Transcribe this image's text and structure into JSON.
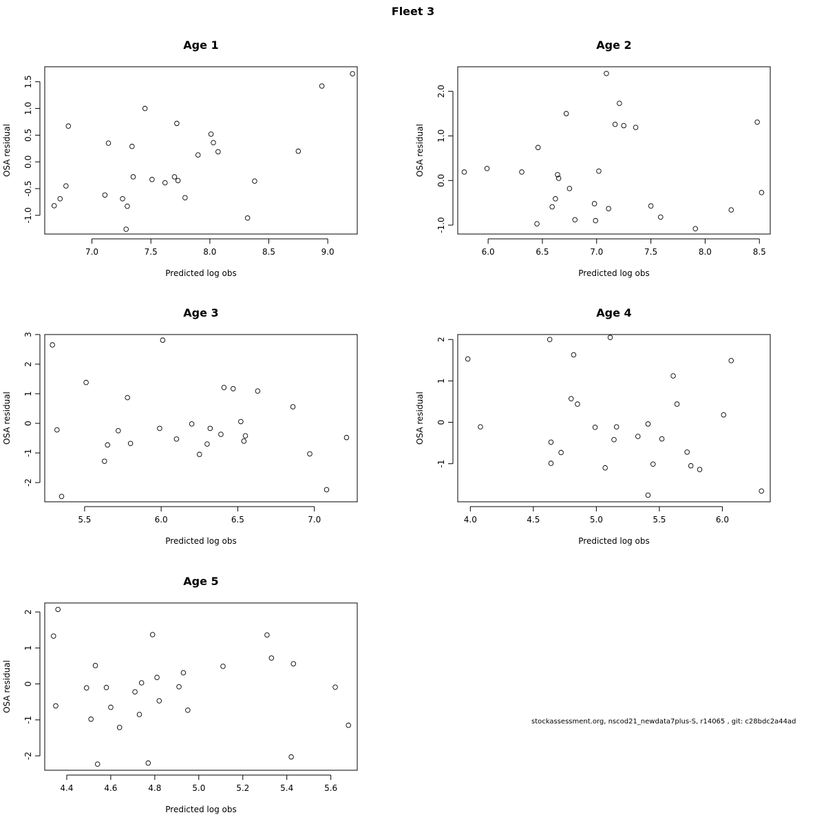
{
  "page": {
    "title": "Fleet 3",
    "footnote": "stockassessment.org, nscod21_newdata7plus-S, r14065 , git: c28bdc2a44ad"
  },
  "colors": {
    "axis": "#000000",
    "point": "#000000",
    "background": "#ffffff"
  },
  "chart_data": [
    {
      "type": "scatter",
      "title": "Age 1",
      "xlabel": "Predicted log obs",
      "ylabel": "OSA residual",
      "xlim": [
        6.6,
        9.25
      ],
      "ylim": [
        -1.35,
        1.78
      ],
      "xticks": [
        "7.0",
        "7.5",
        "8.0",
        "8.5",
        "9.0"
      ],
      "yticks": [
        "-1.0",
        "-0.5",
        "0.0",
        "0.5",
        "1.0",
        "1.5"
      ],
      "points": [
        [
          6.68,
          -0.82
        ],
        [
          6.73,
          -0.69
        ],
        [
          6.78,
          -0.45
        ],
        [
          6.8,
          0.67
        ],
        [
          7.11,
          -0.62
        ],
        [
          7.14,
          0.35
        ],
        [
          7.26,
          -0.69
        ],
        [
          7.3,
          -0.83
        ],
        [
          7.29,
          -1.26
        ],
        [
          7.34,
          0.29
        ],
        [
          7.35,
          -0.28
        ],
        [
          7.45,
          1.0
        ],
        [
          7.51,
          -0.33
        ],
        [
          7.62,
          -0.39
        ],
        [
          7.7,
          -0.28
        ],
        [
          7.72,
          0.72
        ],
        [
          7.73,
          -0.35
        ],
        [
          7.79,
          -0.67
        ],
        [
          7.9,
          0.13
        ],
        [
          8.01,
          0.52
        ],
        [
          8.03,
          0.36
        ],
        [
          8.07,
          0.19
        ],
        [
          8.32,
          -1.05
        ],
        [
          8.38,
          -0.36
        ],
        [
          8.75,
          0.2
        ],
        [
          8.95,
          1.42
        ],
        [
          9.21,
          1.65
        ]
      ]
    },
    {
      "type": "scatter",
      "title": "Age 2",
      "xlabel": "Predicted log obs",
      "ylabel": "OSA residual",
      "xlim": [
        5.72,
        8.6
      ],
      "ylim": [
        -1.2,
        2.55
      ],
      "xticks": [
        "6.0",
        "6.5",
        "7.0",
        "7.5",
        "8.0",
        "8.5"
      ],
      "yticks": [
        "-1.0",
        "0.0",
        "1.0",
        "2.0"
      ],
      "points": [
        [
          5.78,
          0.19
        ],
        [
          5.99,
          0.27
        ],
        [
          6.31,
          0.19
        ],
        [
          6.45,
          -0.97
        ],
        [
          6.46,
          0.74
        ],
        [
          6.59,
          -0.59
        ],
        [
          6.62,
          -0.41
        ],
        [
          6.64,
          0.13
        ],
        [
          6.65,
          0.05
        ],
        [
          6.72,
          1.5
        ],
        [
          6.75,
          -0.18
        ],
        [
          6.8,
          -0.88
        ],
        [
          6.98,
          -0.52
        ],
        [
          6.99,
          -0.9
        ],
        [
          7.02,
          0.21
        ],
        [
          7.09,
          2.4
        ],
        [
          7.11,
          -0.63
        ],
        [
          7.17,
          1.26
        ],
        [
          7.21,
          1.73
        ],
        [
          7.25,
          1.23
        ],
        [
          7.36,
          1.19
        ],
        [
          7.5,
          -0.57
        ],
        [
          7.59,
          -0.82
        ],
        [
          7.91,
          -1.08
        ],
        [
          8.24,
          -0.66
        ],
        [
          8.48,
          1.31
        ],
        [
          8.52,
          -0.27
        ]
      ]
    },
    {
      "type": "scatter",
      "title": "Age 3",
      "xlabel": "Predicted log obs",
      "ylabel": "OSA residual",
      "xlim": [
        5.24,
        7.28
      ],
      "ylim": [
        -2.65,
        3.0
      ],
      "xticks": [
        "5.5",
        "6.0",
        "6.5",
        "7.0"
      ],
      "yticks": [
        "-2",
        "-1",
        "0",
        "1",
        "2",
        "3"
      ],
      "points": [
        [
          5.29,
          2.65
        ],
        [
          5.32,
          -0.22
        ],
        [
          5.35,
          -2.47
        ],
        [
          5.51,
          1.38
        ],
        [
          5.63,
          -1.28
        ],
        [
          5.65,
          -0.73
        ],
        [
          5.72,
          -0.25
        ],
        [
          5.78,
          0.87
        ],
        [
          5.8,
          -0.68
        ],
        [
          5.99,
          -0.17
        ],
        [
          6.01,
          2.81
        ],
        [
          6.1,
          -0.53
        ],
        [
          6.2,
          -0.02
        ],
        [
          6.25,
          -1.05
        ],
        [
          6.3,
          -0.7
        ],
        [
          6.32,
          -0.17
        ],
        [
          6.39,
          -0.37
        ],
        [
          6.41,
          1.21
        ],
        [
          6.47,
          1.17
        ],
        [
          6.52,
          0.06
        ],
        [
          6.54,
          -0.6
        ],
        [
          6.55,
          -0.42
        ],
        [
          6.63,
          1.09
        ],
        [
          6.86,
          0.56
        ],
        [
          6.97,
          -1.03
        ],
        [
          7.08,
          -2.24
        ],
        [
          7.21,
          -0.48
        ]
      ]
    },
    {
      "type": "scatter",
      "title": "Age 4",
      "xlabel": "Predicted log obs",
      "ylabel": "OSA residual",
      "xlim": [
        3.9,
        6.38
      ],
      "ylim": [
        -1.92,
        2.12
      ],
      "xticks": [
        "4.0",
        "4.5",
        "5.0",
        "5.5",
        "6.0"
      ],
      "yticks": [
        "-1",
        "0",
        "1",
        "2"
      ],
      "points": [
        [
          3.98,
          1.53
        ],
        [
          4.08,
          -0.11
        ],
        [
          4.63,
          2.0
        ],
        [
          4.64,
          -0.48
        ],
        [
          4.64,
          -0.99
        ],
        [
          4.72,
          -0.73
        ],
        [
          4.8,
          0.57
        ],
        [
          4.82,
          1.63
        ],
        [
          4.85,
          0.44
        ],
        [
          4.99,
          -0.12
        ],
        [
          5.07,
          -1.1
        ],
        [
          5.11,
          2.05
        ],
        [
          5.14,
          -0.42
        ],
        [
          5.16,
          -0.11
        ],
        [
          5.33,
          -0.34
        ],
        [
          5.41,
          -0.04
        ],
        [
          5.41,
          -1.76
        ],
        [
          5.45,
          -1.01
        ],
        [
          5.52,
          -0.4
        ],
        [
          5.61,
          1.12
        ],
        [
          5.64,
          0.44
        ],
        [
          5.72,
          -0.72
        ],
        [
          5.75,
          -1.05
        ],
        [
          5.82,
          -1.14
        ],
        [
          6.01,
          0.18
        ],
        [
          6.07,
          1.49
        ],
        [
          6.31,
          -1.66
        ]
      ]
    },
    {
      "type": "scatter",
      "title": "Age 5",
      "xlabel": "Predicted log obs",
      "ylabel": "OSA residual",
      "xlim": [
        4.3,
        5.72
      ],
      "ylim": [
        -2.4,
        2.25
      ],
      "xticks": [
        "4.4",
        "4.6",
        "4.8",
        "5.0",
        "5.2",
        "5.4",
        "5.6"
      ],
      "yticks": [
        "-2",
        "-1",
        "0",
        "1",
        "2"
      ],
      "points": [
        [
          4.34,
          1.33
        ],
        [
          4.36,
          2.07
        ],
        [
          4.35,
          -0.61
        ],
        [
          4.49,
          -0.11
        ],
        [
          4.51,
          -0.98
        ],
        [
          4.53,
          0.51
        ],
        [
          4.54,
          -2.23
        ],
        [
          4.58,
          -0.1
        ],
        [
          4.6,
          -0.65
        ],
        [
          4.64,
          -1.21
        ],
        [
          4.71,
          -0.22
        ],
        [
          4.73,
          -0.85
        ],
        [
          4.74,
          0.03
        ],
        [
          4.77,
          -2.2
        ],
        [
          4.79,
          1.37
        ],
        [
          4.81,
          0.18
        ],
        [
          4.82,
          -0.47
        ],
        [
          4.91,
          -0.08
        ],
        [
          4.93,
          0.31
        ],
        [
          4.95,
          -0.73
        ],
        [
          5.11,
          0.49
        ],
        [
          5.31,
          1.36
        ],
        [
          5.33,
          0.72
        ],
        [
          5.42,
          -2.03
        ],
        [
          5.43,
          0.56
        ],
        [
          5.62,
          -0.09
        ],
        [
          5.68,
          -1.15
        ]
      ]
    }
  ]
}
